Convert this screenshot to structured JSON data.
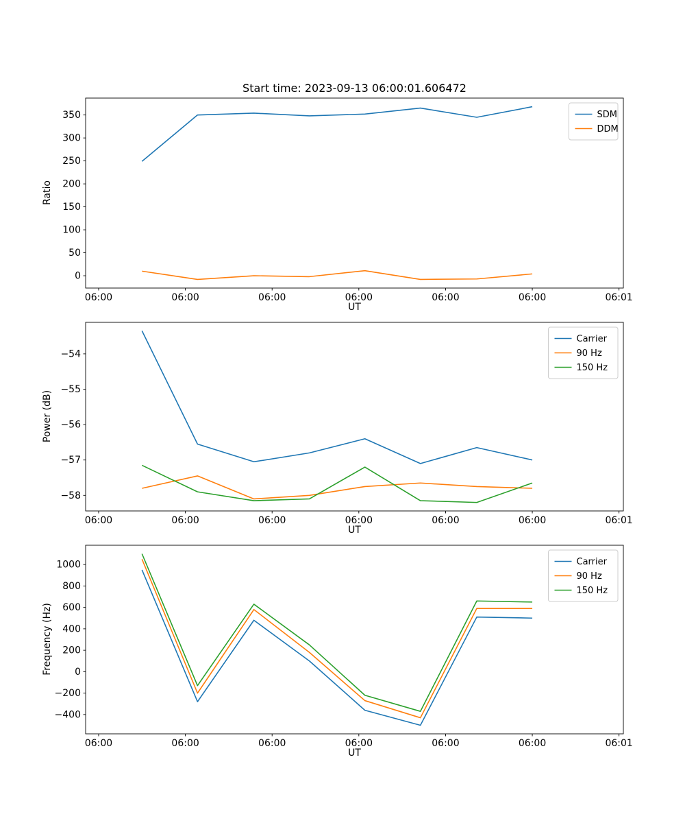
{
  "figure": {
    "title": "Start time: 2023-09-13 06:00:01.606472"
  },
  "chart_data": [
    {
      "type": "line",
      "title": "Start time: 2023-09-13 06:00:01.606472",
      "xlabel": "UT",
      "ylabel": "Ratio",
      "x": [
        5,
        11.4,
        17.9,
        24.3,
        30.7,
        37.1,
        43.6,
        50
      ],
      "xlim": [
        -1.5,
        60.5
      ],
      "ylim": [
        -26.8,
        386.8
      ],
      "yticks": [
        0,
        50,
        100,
        150,
        200,
        250,
        300,
        350
      ],
      "xticks": {
        "values": [
          0,
          10,
          20,
          30,
          40,
          50,
          60
        ],
        "labels": [
          "06:00",
          "06:00",
          "06:00",
          "06:00",
          "06:00",
          "06:00",
          "06:01"
        ]
      },
      "grid": false,
      "legend_position": "upper right",
      "series": [
        {
          "name": "SDM",
          "color": "#1f77b4",
          "values": [
            249,
            350,
            354,
            348,
            352,
            365,
            345,
            368
          ]
        },
        {
          "name": "DDM",
          "color": "#ff7f0e",
          "values": [
            10,
            -8,
            0,
            -2,
            11,
            -8,
            -7,
            4
          ]
        }
      ]
    },
    {
      "type": "line",
      "title": "",
      "xlabel": "UT",
      "ylabel": "Power (dB)",
      "x": [
        5,
        11.4,
        17.9,
        24.3,
        30.7,
        37.1,
        43.6,
        50
      ],
      "xlim": [
        -1.5,
        60.5
      ],
      "ylim": [
        -58.44,
        -53.11
      ],
      "yticks": [
        -58,
        -57,
        -56,
        -55,
        -54
      ],
      "xticks": {
        "values": [
          0,
          10,
          20,
          30,
          40,
          50,
          60
        ],
        "labels": [
          "06:00",
          "06:00",
          "06:00",
          "06:00",
          "06:00",
          "06:00",
          "06:01"
        ]
      },
      "grid": false,
      "legend_position": "upper right",
      "series": [
        {
          "name": "Carrier",
          "color": "#1f77b4",
          "values": [
            -53.35,
            -56.55,
            -57.05,
            -56.8,
            -56.4,
            -57.1,
            -56.65,
            -57.0
          ]
        },
        {
          "name": "90 Hz",
          "color": "#ff7f0e",
          "values": [
            -57.8,
            -57.45,
            -58.1,
            -58.0,
            -57.75,
            -57.65,
            -57.75,
            -57.8
          ]
        },
        {
          "name": "150 Hz",
          "color": "#2ca02c",
          "values": [
            -57.15,
            -57.9,
            -58.15,
            -58.1,
            -57.2,
            -58.15,
            -58.2,
            -57.65
          ]
        }
      ]
    },
    {
      "type": "line",
      "title": "",
      "xlabel": "UT",
      "ylabel": "Frequency (Hz)",
      "x": [
        5,
        11.4,
        17.9,
        24.3,
        30.7,
        37.1,
        43.6,
        50
      ],
      "xlim": [
        -1.5,
        60.5
      ],
      "ylim": [
        -580,
        1180
      ],
      "yticks": [
        -400,
        -200,
        0,
        200,
        400,
        600,
        800,
        1000
      ],
      "xticks": {
        "values": [
          0,
          10,
          20,
          30,
          40,
          50,
          60
        ],
        "labels": [
          "06:00",
          "06:00",
          "06:00",
          "06:00",
          "06:00",
          "06:00",
          "06:01"
        ]
      },
      "grid": false,
      "legend_position": "upper right",
      "series": [
        {
          "name": "Carrier",
          "color": "#1f77b4",
          "values": [
            950,
            -280,
            480,
            100,
            -360,
            -500,
            510,
            500
          ]
        },
        {
          "name": "90 Hz",
          "color": "#ff7f0e",
          "values": [
            1050,
            -200,
            580,
            180,
            -270,
            -430,
            590,
            590
          ]
        },
        {
          "name": "150 Hz",
          "color": "#2ca02c",
          "values": [
            1100,
            -130,
            630,
            250,
            -220,
            -370,
            660,
            650
          ]
        }
      ]
    }
  ]
}
